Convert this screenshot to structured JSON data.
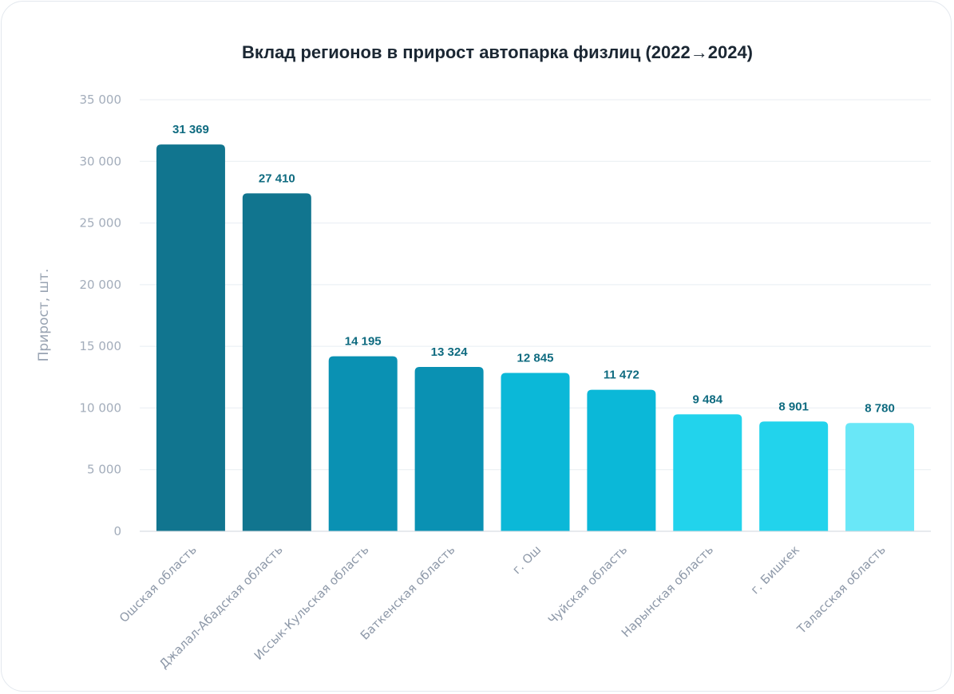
{
  "chart_data": {
    "type": "bar",
    "title": "Вклад регионов в прирост автопарка физлиц (2022→2024)",
    "xlabel": "",
    "ylabel": "Прирост, шт.",
    "ylim": [
      0,
      35000
    ],
    "yticks": [
      0,
      5000,
      10000,
      15000,
      20000,
      25000,
      30000,
      35000
    ],
    "ytick_labels": [
      "0",
      "5 000",
      "10 000",
      "15 000",
      "20 000",
      "25 000",
      "30 000",
      "35 000"
    ],
    "grid": true,
    "categories": [
      "Ошская область",
      "Джалал-Абадская область",
      "Иссык-Кульская область",
      "Баткенская область",
      "г. Ош",
      "Чуйская область",
      "Нарынская область",
      "г. Бишкек",
      "Таласская область"
    ],
    "values": [
      31369,
      27410,
      14195,
      13324,
      12845,
      11472,
      9484,
      8901,
      8780
    ],
    "value_labels": [
      "31 369",
      "27 410",
      "14 195",
      "13 324",
      "12 845",
      "11 472",
      "9 484",
      "8 901",
      "8 780"
    ],
    "bar_colors": [
      "#11758f",
      "#11758f",
      "#0a91b3",
      "#0a91b3",
      "#0bb8d8",
      "#0bb8d8",
      "#22d3ec",
      "#22d3ec",
      "#69e7f7"
    ],
    "value_label_color": "#0f6b80"
  }
}
